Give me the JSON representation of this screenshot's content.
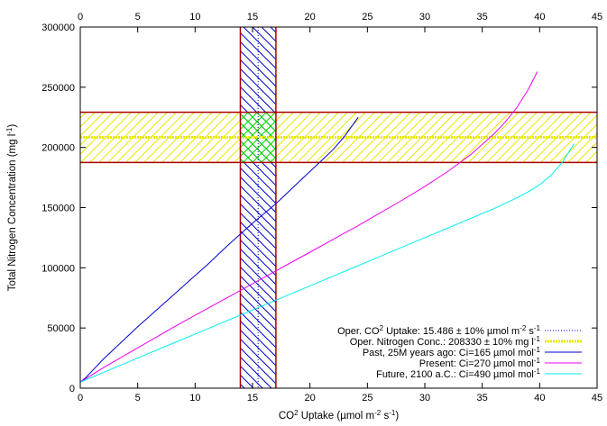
{
  "chart_data": {
    "type": "line",
    "xlabel_parts": [
      "CO",
      "2",
      " Uptake (µmol m",
      "-2",
      " s",
      "-1",
      ")"
    ],
    "ylabel_parts": [
      "Total Nitrogen Concentration (mg l",
      "-1",
      ")"
    ],
    "xlim": [
      0,
      45
    ],
    "ylim": [
      0,
      300000
    ],
    "x_ticks": [
      0,
      5,
      10,
      15,
      20,
      25,
      30,
      35,
      40,
      45
    ],
    "x2_ticks": [
      0,
      5,
      10,
      15,
      20,
      25,
      30,
      35,
      40,
      45
    ],
    "y_ticks": [
      0,
      50000,
      100000,
      150000,
      200000,
      250000,
      300000
    ],
    "grid": false,
    "legend_position": "bottom-right",
    "bands": {
      "co2": {
        "legend_parts": [
          "Oper. CO",
          "2",
          " Uptake: 15.486 ± 10% µmol m",
          "-2",
          " s",
          "-1"
        ],
        "center": 15.486,
        "range": [
          13.937,
          17.035
        ],
        "line_color": "#0000cc",
        "hatch_color": "#0000cc",
        "border_color": "#aa0000"
      },
      "nitrogen": {
        "legend_parts": [
          "Oper. Nitrogen Conc.: 208330 ± 10% mg l",
          "-1"
        ],
        "center": 208330,
        "range": [
          187497,
          229163
        ],
        "line_color": "#e8e800",
        "hatch_color": "#e8e800",
        "border_color": "#aa0000"
      },
      "overlap_color": "#00dd00"
    },
    "series": [
      {
        "legend_parts": [
          "Past, 25M years ago: Ci=165 µmol mol",
          "-1"
        ],
        "color": "#0000cc",
        "x": [
          0,
          0.5,
          1,
          2,
          3,
          4,
          5,
          6,
          7,
          8,
          9,
          10,
          11,
          12,
          13,
          14,
          15,
          16,
          17,
          18,
          19,
          20,
          21,
          22,
          23,
          24.2
        ],
        "y": [
          5000,
          9000,
          14000,
          24000,
          33000,
          42000,
          51000,
          59500,
          68000,
          76500,
          85000,
          93500,
          102000,
          111000,
          120000,
          128500,
          137000,
          145000,
          153000,
          162000,
          171000,
          180000,
          189000,
          198000,
          209000,
          225000
        ]
      },
      {
        "legend_parts": [
          "Present: Ci=270 µmol mol",
          "-1"
        ],
        "color": "#ee00ee",
        "x": [
          0,
          0.5,
          1,
          2,
          4,
          6,
          8,
          10,
          12,
          14,
          16,
          18,
          20,
          22,
          24,
          26,
          28,
          30,
          32,
          34,
          36,
          37,
          38,
          39,
          39.8
        ],
        "y": [
          5000,
          8000,
          11000,
          17000,
          28000,
          39000,
          50000,
          60500,
          71000,
          81500,
          92000,
          102500,
          113000,
          123500,
          134000,
          145000,
          156000,
          167500,
          180000,
          194000,
          211000,
          221000,
          233000,
          248000,
          263000
        ]
      },
      {
        "legend_parts": [
          "Future, 2100 a.C.: Ci=490 µmol mol",
          "-1"
        ],
        "color": "#00eeee",
        "x": [
          0,
          0.5,
          1,
          2,
          4,
          6,
          8,
          10,
          12,
          14,
          16,
          18,
          20,
          22,
          24,
          26,
          28,
          30,
          32,
          34,
          36,
          38,
          39,
          40,
          41,
          42,
          43
        ],
        "y": [
          5000,
          7000,
          9000,
          13000,
          21000,
          29000,
          37000,
          45000,
          53000,
          61000,
          69000,
          77000,
          85000,
          93000,
          101000,
          109000,
          117000,
          125000,
          133000,
          141000,
          149000,
          158000,
          163000,
          169000,
          177000,
          188000,
          203000
        ]
      }
    ]
  }
}
